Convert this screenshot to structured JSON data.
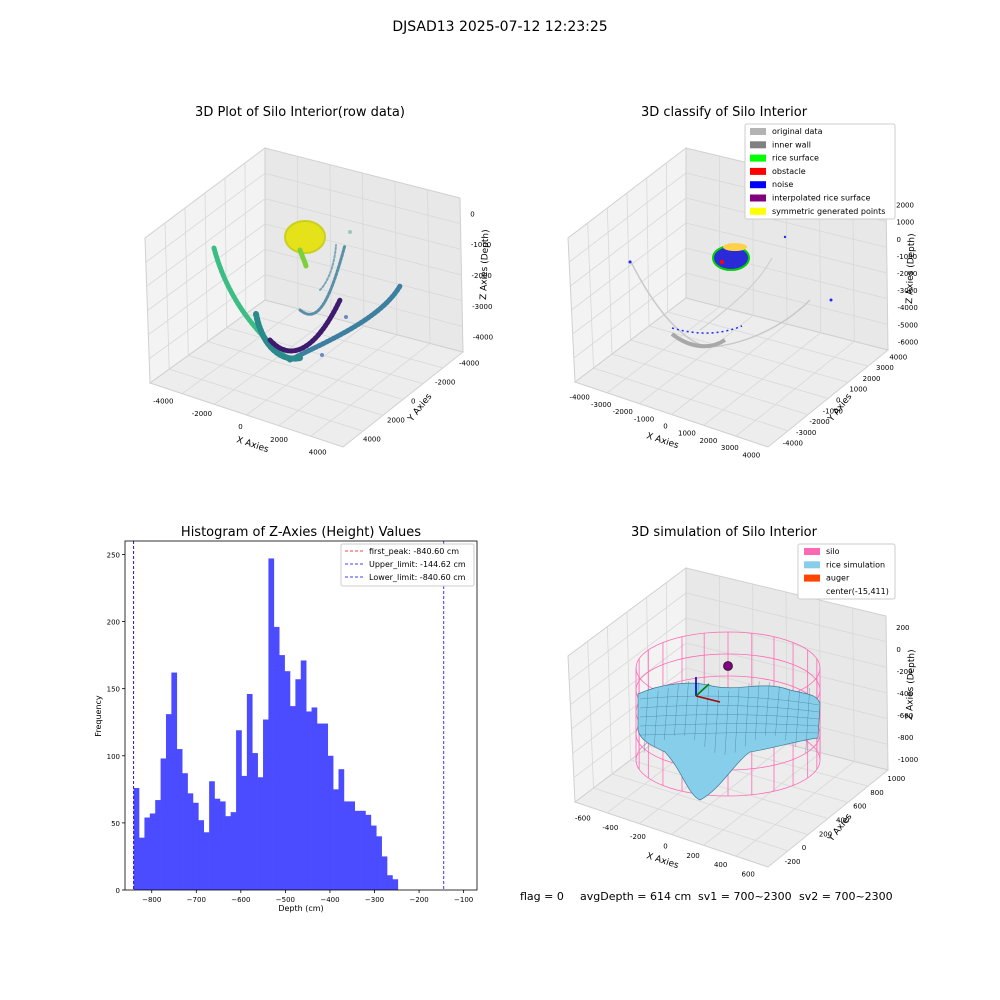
{
  "figure": {
    "suptitle": "DJSAD13 2025-07-12 12:23:25"
  },
  "colors": {
    "pane": "#f2f2f2",
    "pane_dark": "#e6e6e6",
    "grid": "#d6d6d6",
    "bar": "#4b4bff",
    "silo": "#ff69b4",
    "rice": "#87ceeb",
    "auger": "#ff4500"
  },
  "chart_data": [
    {
      "type": "scatter3d",
      "title": "3D Plot of Silo Interior(row data)",
      "xlabel": "X Axies",
      "ylabel": "Y Axies",
      "zlabel": "Z Axies (Depth)",
      "xticks": [
        "-4000",
        "-2000",
        "0",
        "2000",
        "4000"
      ],
      "yticks": [
        "-4000",
        "-2000",
        "0",
        "2000",
        "4000"
      ],
      "zticks": [
        "0",
        "-1000",
        "-2000",
        "-3000",
        "-4000"
      ],
      "colormap": "viridis"
    },
    {
      "type": "scatter3d",
      "title": "3D classify of Silo Interior",
      "xlabel": "X Axies",
      "ylabel": "Y Axies",
      "zlabel": "Z Axies (Depth)",
      "xticks": [
        "-4000",
        "-3000",
        "-2000",
        "-1000",
        "0",
        "1000",
        "2000",
        "3000",
        "4000"
      ],
      "yticks": [
        "4000",
        "3000",
        "2000",
        "1000",
        "0",
        "-1000",
        "-2000",
        "-3000",
        "-4000"
      ],
      "zticks": [
        "2000",
        "1000",
        "0",
        "-1000",
        "-2000",
        "-3000",
        "-4000",
        "-5000",
        "-6000"
      ],
      "legend_position": "upper-right",
      "legend": [
        {
          "label": "original data",
          "color": "#b3b3b3"
        },
        {
          "label": "inner wall",
          "color": "#808080"
        },
        {
          "label": "rice surface",
          "color": "#00ff00"
        },
        {
          "label": "obstacle",
          "color": "#ff0000"
        },
        {
          "label": "noise",
          "color": "#0000ff"
        },
        {
          "label": "interpolated rice surface",
          "color": "#800080"
        },
        {
          "label": "symmetric generated points",
          "color": "#ffff00"
        }
      ]
    },
    {
      "type": "bar",
      "title": "Histogram of Z-Axies (Height) Values",
      "xlabel": "Depth (cm)",
      "ylabel": "Frequency",
      "xlim": [
        -860,
        -70
      ],
      "ylim": [
        0,
        260
      ],
      "xticks": [
        -800,
        -700,
        -600,
        -500,
        -400,
        -300,
        -200,
        -100
      ],
      "yticks": [
        0,
        50,
        100,
        150,
        200,
        250
      ],
      "bin_width": 12.1,
      "bin_start": -840.6,
      "values": [
        76,
        39,
        54,
        57,
        67,
        98,
        131,
        162,
        105,
        87,
        72,
        65,
        52,
        43,
        81,
        68,
        66,
        55,
        58,
        119,
        85,
        146,
        102,
        84,
        127,
        247,
        196,
        175,
        163,
        137,
        157,
        171,
        133,
        136,
        124,
        124,
        100,
        75,
        90,
        66,
        66,
        59,
        59,
        56,
        48,
        40,
        25,
        11,
        8
      ],
      "legend_position": "upper-right",
      "legend": [
        {
          "label": "first_peak: -840.60 cm",
          "value": -840.6,
          "color": "#ff0000"
        },
        {
          "label": "Upper_limit: -144.62 cm",
          "value": -144.62,
          "color": "#0000ff"
        },
        {
          "label": "Lower_limit: -840.60 cm",
          "value": -840.6,
          "color": "#0000ff"
        }
      ]
    },
    {
      "type": "surface3d",
      "title": "3D simulation of Silo Interior",
      "xlabel": "X Axies",
      "ylabel": "Y Axies",
      "zlabel": "Z Axies (Depth)",
      "xticks": [
        "-600",
        "-400",
        "-200",
        "0",
        "200",
        "400",
        "600"
      ],
      "yticks": [
        "1000",
        "800",
        "600",
        "400",
        "200",
        "0",
        "-200"
      ],
      "zticks": [
        "200",
        "0",
        "-200",
        "-400",
        "-600",
        "-800",
        "-1000"
      ],
      "legend_position": "upper-right",
      "legend": [
        {
          "label": "silo",
          "color": "#ff69b4"
        },
        {
          "label": "rice simulation",
          "color": "#87ceeb"
        },
        {
          "label": "auger",
          "color": "#ff4500"
        },
        {
          "label": "center(-15,411)",
          "color": ""
        }
      ]
    }
  ],
  "status": {
    "flag": "flag = 0",
    "avg_depth": "avgDepth = 614 cm",
    "sv1": "sv1 = 700~2300",
    "sv2": "sv2 = 700~2300"
  }
}
